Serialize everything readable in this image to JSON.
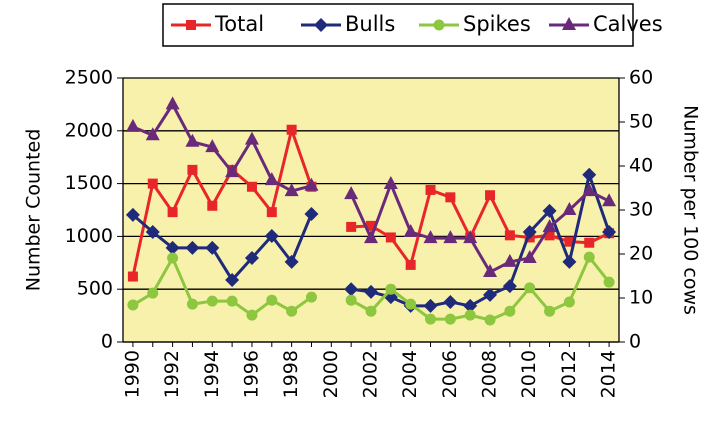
{
  "chart_data": {
    "type": "line",
    "x": [
      1990,
      1991,
      1992,
      1993,
      1994,
      1995,
      1996,
      1997,
      1998,
      1999,
      2000,
      2001,
      2002,
      2003,
      2004,
      2005,
      2006,
      2007,
      2008,
      2009,
      2010,
      2011,
      2012,
      2013,
      2014
    ],
    "xlim": [
      1989.5,
      2014.5
    ],
    "xticks": [
      1990,
      1992,
      1994,
      1996,
      1998,
      2000,
      2002,
      2004,
      2006,
      2008,
      2010,
      2012,
      2014
    ],
    "ylabel": "Number Counted",
    "y2label": "Number per 100 cows",
    "ylim": [
      0,
      2500
    ],
    "yticks": [
      0,
      500,
      1000,
      1500,
      2000,
      2500
    ],
    "y2lim": [
      0,
      60
    ],
    "y2ticks": [
      0,
      10,
      20,
      30,
      40,
      50,
      60
    ],
    "grid": true,
    "legend": "top",
    "background": "#f8f1ab",
    "series": [
      {
        "name": "Total",
        "color": "#e8262a",
        "marker": "square",
        "values": [
          620,
          1500,
          1230,
          1630,
          1290,
          1630,
          1470,
          1230,
          2010,
          1470,
          null,
          1090,
          1100,
          990,
          730,
          1440,
          1370,
          990,
          1390,
          1010,
          990,
          1010,
          950,
          940,
          1030
        ]
      },
      {
        "name": "Bulls",
        "color": "#1f2a7a",
        "marker": "diamond",
        "axis": "y2",
        "values": [
          28.9,
          25,
          21.4,
          21.4,
          21.4,
          14.1,
          19.1,
          24.1,
          18.2,
          29.1,
          null,
          12,
          11.4,
          10.2,
          8.2,
          8.2,
          9.1,
          8.2,
          10.7,
          12.7,
          25,
          29.8,
          18.2,
          38,
          25
        ]
      },
      {
        "name": "Spikes",
        "color": "#8dc63f",
        "marker": "circle",
        "axis": "y2",
        "values": [
          8.4,
          11.1,
          19.1,
          8.6,
          9.3,
          9.3,
          6.1,
          9.5,
          7,
          10.2,
          null,
          9.5,
          7,
          12,
          8.6,
          5.2,
          5.2,
          6.1,
          5,
          7,
          12.3,
          7,
          9.1,
          19.3,
          13.6
        ]
      },
      {
        "name": "Calves",
        "color": "#6a2a7a",
        "marker": "triangle",
        "axis": "y2",
        "values": [
          48.9,
          47,
          54,
          45.5,
          44.3,
          38.6,
          46,
          36.8,
          34.3,
          35.5,
          null,
          33.6,
          23.6,
          35.9,
          25,
          23.6,
          23.6,
          23.6,
          15.9,
          18.2,
          19.1,
          26.1,
          30,
          34.3,
          32
        ]
      }
    ]
  }
}
